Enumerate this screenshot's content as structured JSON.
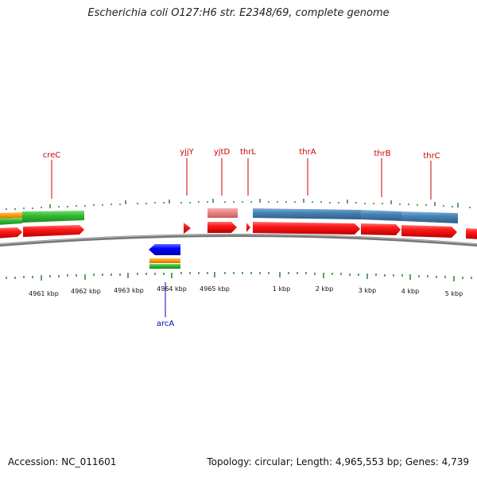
{
  "title": "Escherichia coli O127:H6 str. E2348/69, complete genome",
  "footer": {
    "accession": "Accession: NC_011601",
    "summary": "Topology: circular; Length: 4,965,553 bp; Genes: 4,739"
  },
  "colors": {
    "forward_gene": "#ff0000",
    "reverse_gene": "#0000ff",
    "blue_feature": "#4682b4",
    "pink_feature": "#e88080",
    "green_feature": "#33bb33",
    "orange_feature": "#ff9900",
    "tick": "#227722",
    "backbone": "#777777",
    "forward_label": "#cc0000",
    "reverse_label": "#0000cc"
  },
  "kbp_labels": [
    "4961 kbp",
    "4962 kbp",
    "4963 kbp",
    "4964 kbp",
    "4965 kbp",
    "1 kbp",
    "2 kbp",
    "3 kbp",
    "4 kbp",
    "5 kbp"
  ],
  "forward_genes": [
    "creC",
    "yjjY",
    "yjtD",
    "thrL",
    "thrA",
    "thrB",
    "thrC"
  ],
  "reverse_genes": [
    "arcA"
  ]
}
